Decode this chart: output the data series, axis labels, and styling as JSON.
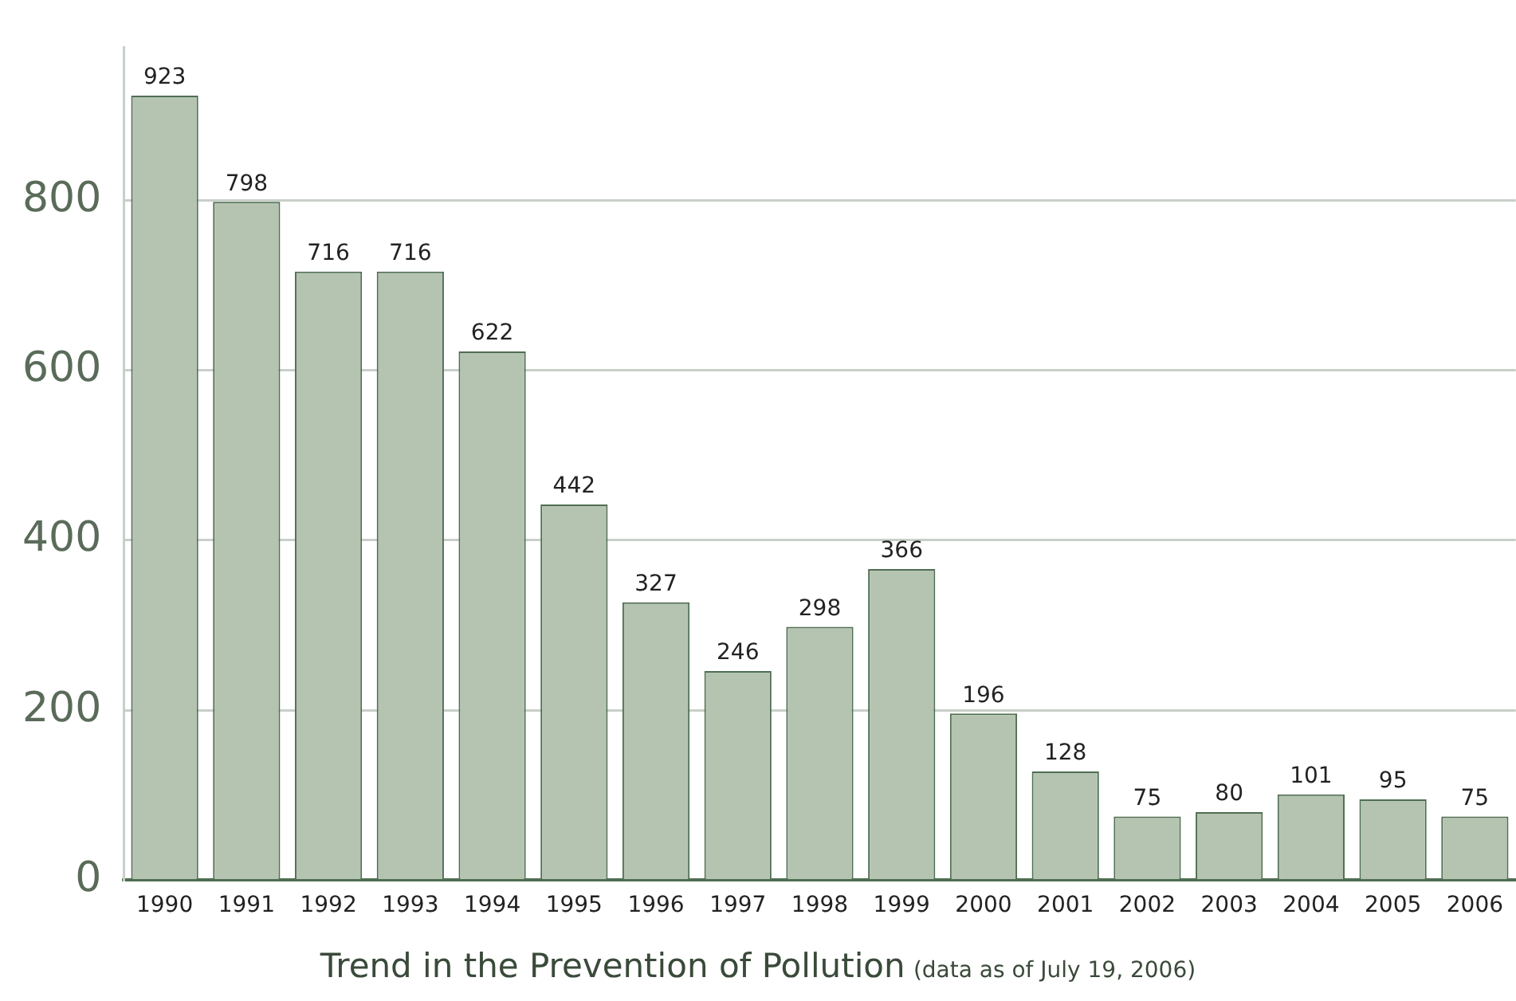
{
  "chart_data": {
    "type": "bar",
    "title": "Trend in the Prevention of Pollution",
    "subtitle": "(data as of July 19, 2006)",
    "categories": [
      "1990",
      "1991",
      "1992",
      "1993",
      "1994",
      "1995",
      "1996",
      "1997",
      "1998",
      "1999",
      "2000",
      "2001",
      "2002",
      "2003",
      "2004",
      "2005",
      "2006"
    ],
    "values": [
      923,
      798,
      716,
      716,
      622,
      442,
      327,
      246,
      298,
      366,
      196,
      128,
      75,
      80,
      101,
      95,
      75
    ],
    "color": "#b5c4b1",
    "ylim": [
      0,
      980
    ],
    "yticks": [
      0,
      200,
      400,
      600,
      800
    ],
    "grid": "y",
    "data_labels": true,
    "legend": false
  }
}
